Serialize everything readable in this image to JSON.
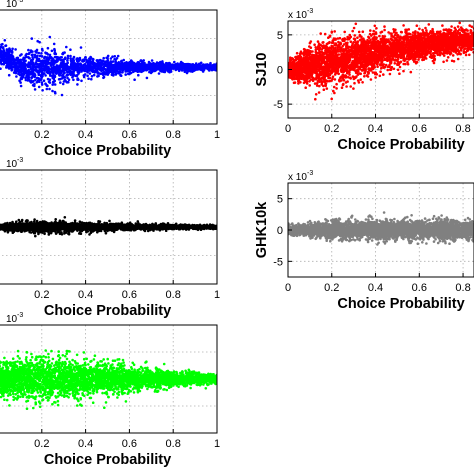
{
  "chart_data": [
    {
      "type": "scatter",
      "panel": "left-top",
      "ylabel": "",
      "xlabel": "Choice Probability",
      "exponent_label": "10",
      "exponent_power": "-3",
      "xlim": [
        0,
        1
      ],
      "xticks": [
        "0.2",
        "0.4",
        "0.6",
        "0.8",
        "1"
      ],
      "yticks": [],
      "grid": true,
      "color": "#0000ff",
      "y_center": 0.0,
      "points": [
        {
          "x": 0.02,
          "y": 0.6,
          "spread_y": 0.55
        },
        {
          "x": 0.1,
          "y": 0.0,
          "spread_y": 0.7
        },
        {
          "x": 0.2,
          "y": 0.0,
          "spread_y": 1.3
        },
        {
          "x": 0.3,
          "y": 0.0,
          "spread_y": 0.8
        },
        {
          "x": 0.4,
          "y": 0.0,
          "spread_y": 0.55
        },
        {
          "x": 0.55,
          "y": 0.0,
          "spread_y": 0.4
        },
        {
          "x": 0.7,
          "y": 0.0,
          "spread_y": 0.3
        },
        {
          "x": 0.85,
          "y": 0.0,
          "spread_y": 0.22
        },
        {
          "x": 1.0,
          "y": 0.0,
          "spread_y": 0.18
        }
      ]
    },
    {
      "type": "scatter",
      "panel": "right-top",
      "ylabel": "SJ10",
      "xlabel": "Choice Probability",
      "exponent_label": "x 10",
      "exponent_power": "-3",
      "xlim": [
        0,
        0.85
      ],
      "ylim": [
        -7,
        7
      ],
      "xticks": [
        "0",
        "0.2",
        "0.4",
        "0.6",
        "0.8"
      ],
      "yticks": [
        "5",
        "0",
        "-5"
      ],
      "grid": true,
      "color": "#ff0000",
      "points": [
        {
          "x": 0.02,
          "y": 0.0,
          "spread_y": 1.5
        },
        {
          "x": 0.1,
          "y": 0.5,
          "spread_y": 3.0
        },
        {
          "x": 0.2,
          "y": 1.0,
          "spread_y": 3.6
        },
        {
          "x": 0.3,
          "y": 1.8,
          "spread_y": 3.4
        },
        {
          "x": 0.4,
          "y": 2.4,
          "spread_y": 3.0
        },
        {
          "x": 0.5,
          "y": 3.0,
          "spread_y": 2.6
        },
        {
          "x": 0.6,
          "y": 3.4,
          "spread_y": 2.3
        },
        {
          "x": 0.7,
          "y": 3.8,
          "spread_y": 2.0
        },
        {
          "x": 0.85,
          "y": 4.2,
          "spread_y": 1.7
        }
      ]
    },
    {
      "type": "scatter",
      "panel": "left-middle",
      "ylabel": "",
      "xlabel": "Choice Probability",
      "exponent_label": "10",
      "exponent_power": "-3",
      "xlim": [
        0,
        1
      ],
      "xticks": [
        "0.2",
        "0.4",
        "0.6",
        "0.8",
        "1"
      ],
      "yticks": [],
      "grid": true,
      "color": "#000000",
      "points": [
        {
          "x": 0.0,
          "y": 0.0,
          "spread_y": 0.15
        },
        {
          "x": 0.2,
          "y": 0.0,
          "spread_y": 0.35
        },
        {
          "x": 0.4,
          "y": 0.0,
          "spread_y": 0.25
        },
        {
          "x": 0.6,
          "y": 0.0,
          "spread_y": 0.18
        },
        {
          "x": 0.8,
          "y": 0.0,
          "spread_y": 0.13
        },
        {
          "x": 1.0,
          "y": 0.0,
          "spread_y": 0.1
        }
      ]
    },
    {
      "type": "scatter",
      "panel": "right-middle",
      "ylabel": "GHK10k",
      "xlabel": "Choice Probability",
      "exponent_label": "x 10",
      "exponent_power": "-3",
      "xlim": [
        0,
        0.85
      ],
      "ylim": [
        -7.5,
        7.5
      ],
      "xticks": [
        "0",
        "0.2",
        "0.4",
        "0.6",
        "0.8"
      ],
      "yticks": [
        "5",
        "0",
        "-5"
      ],
      "grid": true,
      "color": "#808080",
      "points": [
        {
          "x": 0.02,
          "y": 0.0,
          "spread_y": 0.8
        },
        {
          "x": 0.2,
          "y": 0.0,
          "spread_y": 1.5
        },
        {
          "x": 0.4,
          "y": 0.0,
          "spread_y": 1.6
        },
        {
          "x": 0.6,
          "y": 0.0,
          "spread_y": 1.6
        },
        {
          "x": 0.85,
          "y": 0.0,
          "spread_y": 1.5
        }
      ]
    },
    {
      "type": "scatter",
      "panel": "left-bottom",
      "ylabel": "",
      "xlabel": "Choice Probability",
      "exponent_label": "10",
      "exponent_power": "-3",
      "xlim": [
        0,
        1
      ],
      "xticks": [
        "0.2",
        "0.4",
        "0.6",
        "0.8",
        "1"
      ],
      "yticks": [],
      "grid": true,
      "color": "#00ff00",
      "points": [
        {
          "x": 0.0,
          "y": 0.0,
          "spread_y": 2.2
        },
        {
          "x": 0.2,
          "y": 0.0,
          "spread_y": 3.0
        },
        {
          "x": 0.4,
          "y": 0.0,
          "spread_y": 2.5
        },
        {
          "x": 0.6,
          "y": 0.0,
          "spread_y": 1.8
        },
        {
          "x": 0.8,
          "y": 0.0,
          "spread_y": 1.1
        },
        {
          "x": 1.0,
          "y": 0.0,
          "spread_y": 0.6
        }
      ]
    }
  ]
}
